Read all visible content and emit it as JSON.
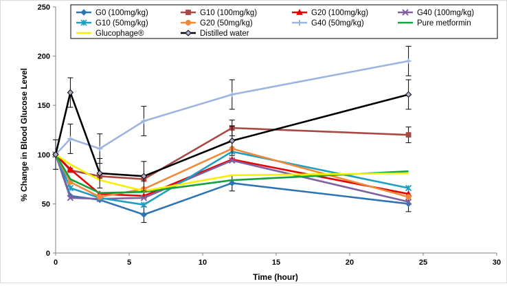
{
  "chart_data": {
    "type": "line",
    "title": "",
    "xlabel": "Time  (hour)",
    "ylabel": "% Change in Blood Glucose Level",
    "xlim": [
      0,
      30
    ],
    "ylim": [
      0,
      250
    ],
    "xticks": [
      0,
      5,
      10,
      15,
      20,
      25,
      30
    ],
    "yticks": [
      0,
      50,
      100,
      150,
      200,
      250
    ],
    "x": [
      0,
      1,
      3,
      6,
      12,
      24
    ],
    "series": [
      {
        "name": "G0 (100mg/kg)",
        "color": "#2e74b5",
        "marker": "diamond",
        "values": [
          100,
          58,
          54,
          39,
          71,
          50
        ],
        "errors": [
          null,
          null,
          null,
          8,
          8,
          8
        ]
      },
      {
        "name": "G10 (100mg/kg)",
        "color": "#a94843",
        "marker": "square",
        "values": [
          100,
          84,
          78,
          75,
          127,
          120
        ],
        "errors": [
          null,
          null,
          null,
          null,
          8,
          8
        ]
      },
      {
        "name": "G20 (100mg/kg)",
        "color": "#e80000",
        "marker": "triangle",
        "values": [
          100,
          85,
          60,
          58,
          95,
          60
        ],
        "errors": [
          null,
          null,
          null,
          null,
          null,
          null
        ]
      },
      {
        "name": "G40 (100mg/kg)",
        "color": "#7e60a0",
        "marker": "x",
        "values": [
          100,
          56,
          55,
          56,
          94,
          52
        ],
        "errors": [
          null,
          null,
          null,
          null,
          null,
          null
        ]
      },
      {
        "name": "G10 (50mg/kg)",
        "color": "#1f9fbf",
        "marker": "star",
        "values": [
          100,
          66,
          56,
          49,
          103,
          66
        ],
        "errors": [
          null,
          null,
          null,
          null,
          null,
          null
        ]
      },
      {
        "name": "G20 (50mg/kg)",
        "color": "#f0883a",
        "marker": "circle",
        "values": [
          100,
          72,
          57,
          65,
          106,
          57
        ],
        "errors": [
          null,
          null,
          null,
          null,
          null,
          null
        ]
      },
      {
        "name": "G40 (50mg/kg)",
        "color": "#9db4de",
        "marker": "plus",
        "values": [
          100,
          116,
          106,
          134,
          161,
          195
        ],
        "errors": [
          null,
          15,
          15,
          15,
          15,
          15
        ]
      },
      {
        "name": "Pure metformin",
        "color": "#13a13e",
        "marker": "none",
        "values": [
          100,
          75,
          61,
          62,
          74,
          83
        ],
        "errors": [
          null,
          null,
          null,
          null,
          null,
          null
        ]
      },
      {
        "name": "Glucophage®",
        "color": "#f5f000",
        "marker": "none",
        "values": [
          100,
          90,
          74,
          63,
          79,
          81
        ],
        "errors": [
          null,
          null,
          null,
          null,
          null,
          null
        ]
      },
      {
        "name": "Distilled water",
        "color": "#000000",
        "marker": "diamond",
        "values": [
          100,
          163,
          81,
          78,
          114,
          161
        ],
        "errors": [
          15,
          15,
          15,
          15,
          15,
          15
        ]
      }
    ],
    "legend_position": "top"
  }
}
